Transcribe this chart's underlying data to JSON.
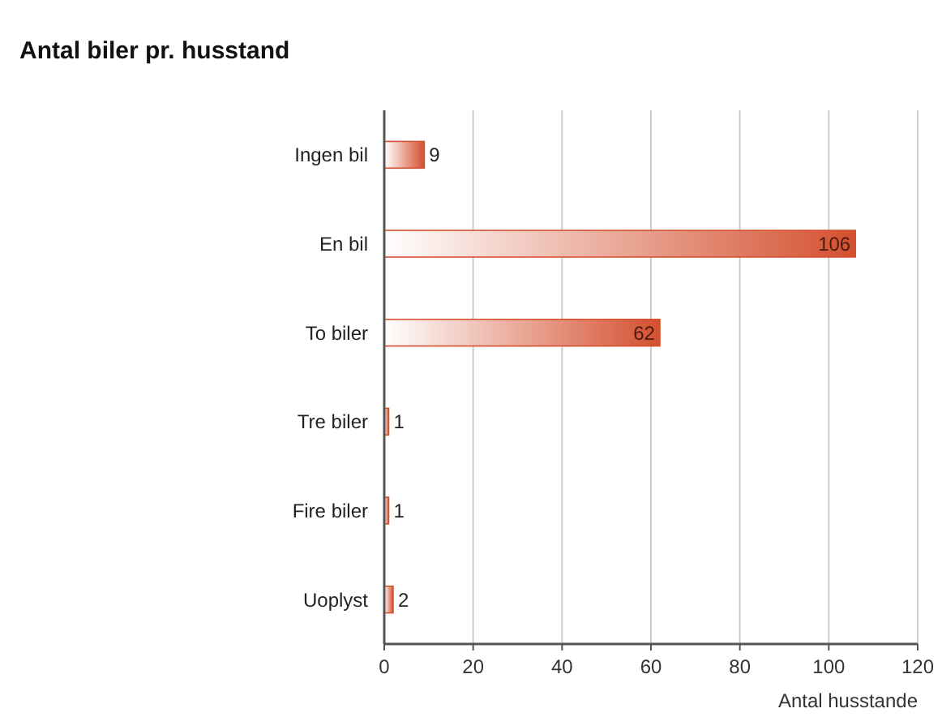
{
  "chart_data": {
    "type": "bar",
    "orientation": "horizontal",
    "title": "Antal biler pr. husstand",
    "xlabel": "Antal husstande",
    "categories": [
      "Ingen bil",
      "En bil",
      "To biler",
      "Tre biler",
      "Fire biler",
      "Uoplyst"
    ],
    "values": [
      9,
      106,
      62,
      1,
      1,
      2
    ],
    "color": "#d4502f",
    "xlim": [
      0,
      120
    ],
    "xticks": [
      0,
      20,
      40,
      60,
      80,
      100,
      120
    ],
    "grid": "x",
    "data_labels": true
  }
}
